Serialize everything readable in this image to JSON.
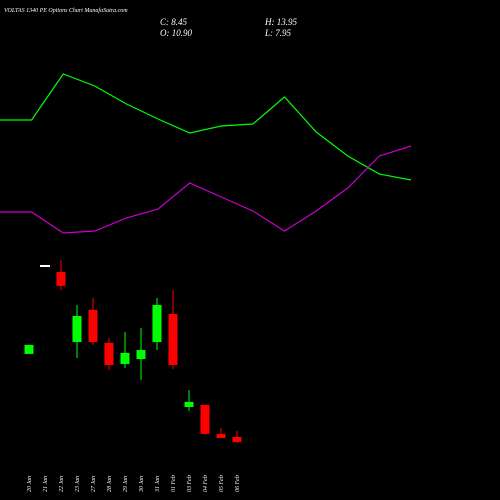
{
  "chart_data": [
    {
      "type": "candlestick",
      "title": "VOLTAS 1340 PE Options  Chart MunafaSutra.com",
      "ohlc_labels": [
        "C: 8.45",
        "O: 10.90",
        "H: 13.95",
        "L: 7.95"
      ],
      "categories": [
        "20 Jan",
        "21 Jan",
        "22 Jan",
        "23 Jan",
        "27 Jan",
        "28 Jan",
        "29 Jan",
        "30 Jan",
        "31 Jan",
        "01 Feb",
        "03 Feb",
        "04 Feb",
        "05 Feb",
        "06 Feb"
      ],
      "open": [
        51.4,
        94.3,
        91.4,
        57.2,
        72.9,
        56.8,
        46.5,
        48.9,
        57.2,
        70.9,
        25.5,
        26.5,
        12.4,
        10.9
      ],
      "high": [
        55.8,
        94.3,
        97.2,
        75.3,
        78.7,
        59.2,
        62.1,
        64.1,
        78.7,
        82.6,
        33.8,
        26.5,
        15.3,
        13.95
      ],
      "low": [
        51.4,
        94.3,
        82.6,
        49.4,
        55.8,
        43.6,
        44.6,
        38.7,
        53.3,
        44.1,
        23.6,
        11.9,
        10.4,
        7.95
      ],
      "close": [
        55.8,
        94.3,
        84.6,
        69.9,
        57.2,
        46.0,
        51.9,
        53.3,
        75.3,
        46.0,
        28.0,
        12.4,
        10.4,
        8.45
      ],
      "up_color": "#00ff00",
      "down_color": "#ff0000",
      "ylim": [
        0,
        110
      ]
    },
    {
      "type": "line",
      "series": [
        {
          "color": "#00ff00",
          "values": [
            130,
            130,
            176,
            164,
            146,
            131,
            117,
            124,
            126,
            153,
            118,
            94,
            76,
            70
          ]
        },
        {
          "color": "#cc00cc",
          "values": [
            38,
            38,
            17,
            19,
            32,
            41,
            67,
            53,
            39,
            19,
            39,
            62,
            94,
            104
          ]
        }
      ],
      "ylim": [
        0,
        200
      ]
    }
  ]
}
